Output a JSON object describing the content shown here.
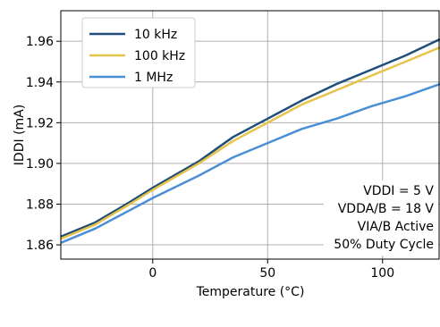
{
  "chart_data": {
    "type": "line",
    "xlabel": "Temperature (°C)",
    "ylabel": "IDDI (mA)",
    "xlim": [
      -40,
      125
    ],
    "ylim": [
      1.853,
      1.975
    ],
    "xticks": [
      0,
      50,
      100
    ],
    "yticks": [
      1.86,
      1.88,
      1.9,
      1.92,
      1.94,
      1.96
    ],
    "grid": true,
    "legend_position": "top-left",
    "series": [
      {
        "name": "10 kHz",
        "color": "#1f4e79",
        "x": [
          -40,
          -25,
          -10,
          0,
          20,
          35,
          50,
          65,
          80,
          95,
          110,
          125
        ],
        "y": [
          1.864,
          1.871,
          1.881,
          1.888,
          1.901,
          1.913,
          1.922,
          1.931,
          1.939,
          1.946,
          1.953,
          1.961
        ]
      },
      {
        "name": "100 kHz",
        "color": "#e6c34b",
        "x": [
          -40,
          -25,
          -10,
          0,
          20,
          35,
          50,
          65,
          80,
          95,
          110,
          125
        ],
        "y": [
          1.863,
          1.87,
          1.88,
          1.887,
          1.9,
          1.911,
          1.92,
          1.929,
          1.936,
          1.943,
          1.95,
          1.957
        ]
      },
      {
        "name": "1 MHz",
        "color": "#4a8fd6",
        "x": [
          -40,
          -25,
          -10,
          0,
          20,
          35,
          50,
          65,
          80,
          95,
          110,
          125
        ],
        "y": [
          1.861,
          1.868,
          1.877,
          1.883,
          1.894,
          1.903,
          1.91,
          1.917,
          1.922,
          1.928,
          1.933,
          1.939
        ]
      }
    ],
    "annotations": [
      "VDDI = 5 V",
      "VDDA/B = 18 V",
      "VIA/B Active",
      "50% Duty Cycle"
    ]
  }
}
